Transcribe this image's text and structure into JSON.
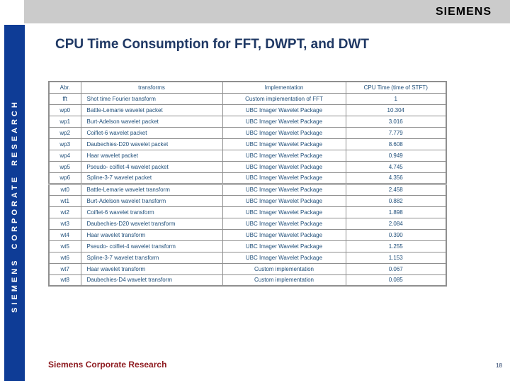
{
  "brand_bar": {
    "logo": "SIEMENS"
  },
  "sidebar": {
    "text": "SIEMENS CORPORATE RESEARCH"
  },
  "slide": {
    "title": "CPU Time Consumption for FFT, DWPT, and DWT"
  },
  "table": {
    "columns": [
      "Abr.",
      "transforms",
      "Implementation",
      "CPU Time (time of STFT)"
    ],
    "section_break_before": "wt0",
    "rows": [
      {
        "abr": "fft",
        "transform": "Shot time Fourier transform",
        "implementation": "Custom implementation of FFT",
        "cpu_time": "1"
      },
      {
        "abr": "wp0",
        "transform": "Battle-Lemarie wavelet packet",
        "implementation": "UBC Imager Wavelet Package",
        "cpu_time": "10.304"
      },
      {
        "abr": "wp1",
        "transform": "Burt-Adelson wavelet packet",
        "implementation": "UBC Imager Wavelet Package",
        "cpu_time": "3.016"
      },
      {
        "abr": "wp2",
        "transform": "Coiflet-6 wavelet packet",
        "implementation": "UBC Imager Wavelet Package",
        "cpu_time": "7.779"
      },
      {
        "abr": "wp3",
        "transform": "Daubechies-D20 wavelet packet",
        "implementation": "UBC Imager Wavelet Package",
        "cpu_time": "8.608"
      },
      {
        "abr": "wp4",
        "transform": "Haar wavelet packet",
        "implementation": "UBC Imager Wavelet Package",
        "cpu_time": "0.949"
      },
      {
        "abr": "wp5",
        "transform": "Pseudo- coiflet-4 wavelet packet",
        "implementation": "UBC Imager Wavelet Package",
        "cpu_time": "4.745"
      },
      {
        "abr": "wp6",
        "transform": "Spline-3-7 wavelet packet",
        "implementation": "UBC Imager Wavelet Package",
        "cpu_time": "4.356"
      },
      {
        "abr": "wt0",
        "transform": "Battle-Lemarie wavelet transform",
        "implementation": "UBC Imager Wavelet Package",
        "cpu_time": "2.458"
      },
      {
        "abr": "wt1",
        "transform": "Burt-Adelson wavelet transform",
        "implementation": "UBC Imager Wavelet Package",
        "cpu_time": "0.882"
      },
      {
        "abr": "wt2",
        "transform": "Coiflet-6 wavelet transform",
        "implementation": "UBC Imager Wavelet Package",
        "cpu_time": "1.898"
      },
      {
        "abr": "wt3",
        "transform": "Daubechies-D20 wavelet transform",
        "implementation": "UBC Imager Wavelet  Package",
        "cpu_time": "2.084"
      },
      {
        "abr": "wt4",
        "transform": "Haar wavelet transform",
        "implementation": "UBC Imager Wavelet Package",
        "cpu_time": "0.390"
      },
      {
        "abr": "wt5",
        "transform": "Pseudo- coiflet-4 wavelet transform",
        "implementation": "UBC Imager Wavelet Package",
        "cpu_time": "1.255"
      },
      {
        "abr": "wt6",
        "transform": "Spline-3-7 wavelet transform",
        "implementation": "UBC Imager Wavelet Package",
        "cpu_time": "1.153"
      },
      {
        "abr": "wt7",
        "transform": "Haar wavelet transform",
        "implementation": "Custom implementation",
        "cpu_time": "0.067"
      },
      {
        "abr": "wt8",
        "transform": "Daubechies-D4 wavelet transform",
        "implementation": "Custom implementation",
        "cpu_time": "0.085"
      }
    ]
  },
  "footer": {
    "organization": "Siemens Corporate Research",
    "page_number": "18"
  },
  "colors": {
    "sidebar_blue": "#0E3C96",
    "header_gray": "#CBCBCB",
    "title_navy": "#1F3864",
    "table_text": "#1F4E79",
    "footer_red": "#8E1B20",
    "border_gray": "#8F8F8F"
  }
}
